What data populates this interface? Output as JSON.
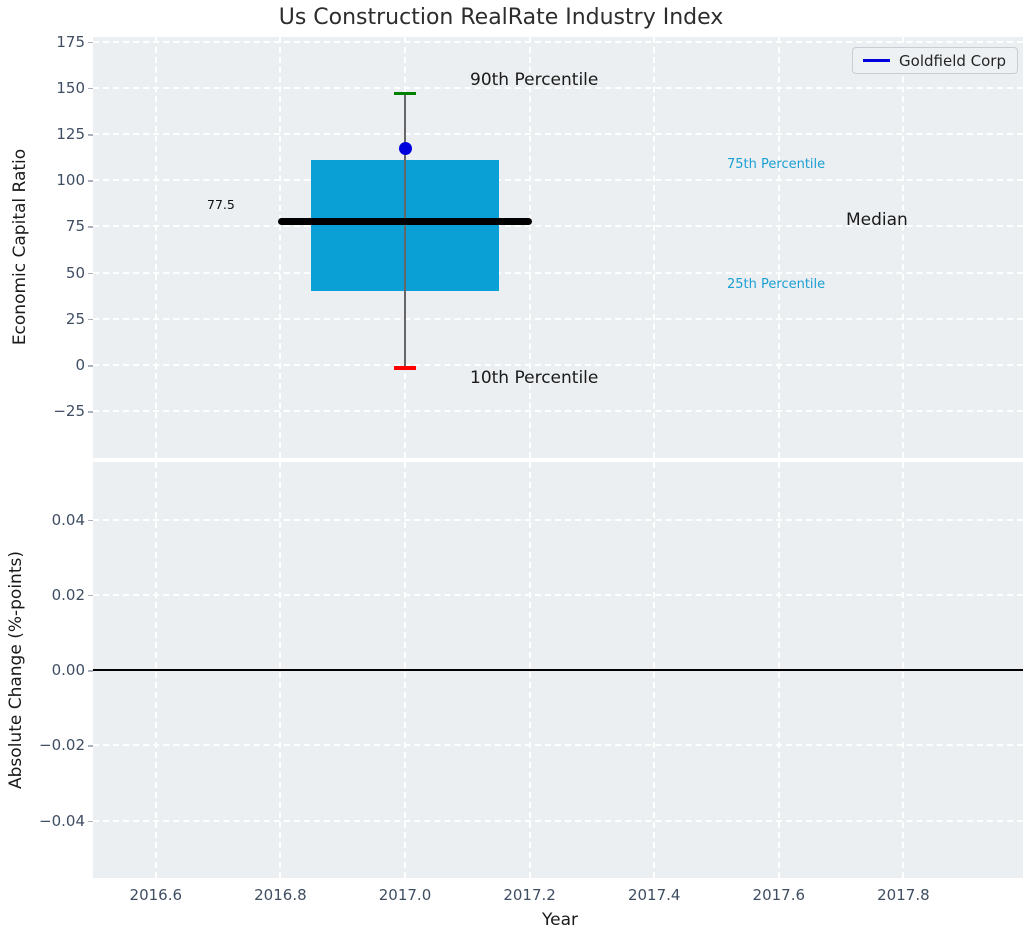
{
  "figure": {
    "title": "Us Construction RealRate Industry Index",
    "xlabel": "Year"
  },
  "colors": {
    "box_fill": "#0aa0d5",
    "median_line": "#000000",
    "whisker": "#666666",
    "p90_cap": "#008000",
    "p10_cap": "#ff0000",
    "company_marker": "#0000dd",
    "legend_line": "#0000dd",
    "percentile_label": "#1b9fd4",
    "plot_background": "#ebeff1",
    "tick_label": "#3f4e63"
  },
  "chart_data": [
    {
      "type": "boxplot",
      "panel": "top",
      "title": "Us Construction RealRate Industry Index",
      "ylabel": "Economic Capital Ratio",
      "ytick_values": [
        175,
        150,
        125,
        100,
        75,
        50,
        25,
        0,
        -25
      ],
      "ytick_labels": [
        "175",
        "150",
        "125",
        "100",
        "75",
        "50",
        "25",
        "0",
        "−25"
      ],
      "ylim": [
        -50.5,
        177.5
      ],
      "grid": true,
      "x_center": 2017.0,
      "box": {
        "p90": 147,
        "p75": 111,
        "median": 77.5,
        "p25": 40,
        "p10": -1.5,
        "company_value": 117
      },
      "series": [
        {
          "name": "Goldfield Corp",
          "x": 2017.0,
          "value": 117,
          "marker": "circle"
        }
      ],
      "annotations": [
        {
          "id": "p90",
          "text": "90th Percentile"
        },
        {
          "id": "p10",
          "text": "10th Percentile"
        },
        {
          "id": "p75",
          "text": "75th Percentile"
        },
        {
          "id": "p25",
          "text": "25th Percentile"
        },
        {
          "id": "median",
          "text": "Median"
        },
        {
          "id": "median_value",
          "text": "77.5"
        }
      ],
      "legend": {
        "position": "upper right",
        "entries": [
          {
            "label": "Goldfield Corp",
            "color": "#0000dd"
          }
        ]
      }
    },
    {
      "type": "line",
      "panel": "bottom",
      "ylabel": "Absolute Change (%-points)",
      "ytick_values": [
        0.04,
        0.02,
        0,
        -0.02,
        -0.04
      ],
      "ytick_labels": [
        "0.04",
        "0.02",
        "0.00",
        "−0.02",
        "−0.04"
      ],
      "ylim": [
        -0.0553,
        0.0553
      ],
      "grid": true,
      "zero_line": 0,
      "xlabel": "Year",
      "xtick_values": [
        2016.6,
        2016.8,
        2017.0,
        2017.2,
        2017.4,
        2017.6,
        2017.8
      ],
      "xtick_labels": [
        "2016.6",
        "2016.8",
        "2017.0",
        "2017.2",
        "2017.4",
        "2017.6",
        "2017.8"
      ],
      "xlim": [
        2016.5,
        2018.0
      ]
    }
  ]
}
